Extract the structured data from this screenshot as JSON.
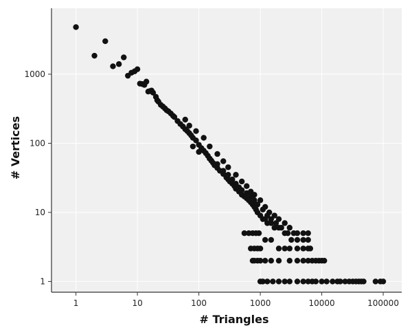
{
  "chart_data": {
    "type": "scatter",
    "title": "",
    "xlabel": "# Triangles",
    "ylabel": "# Vertices",
    "xscale": "log",
    "yscale": "log",
    "xlim": [
      0.4,
      200000
    ],
    "ylim": [
      0.7,
      9000
    ],
    "grid": true,
    "x_ticks": [
      1,
      10,
      100,
      1000,
      10000,
      100000
    ],
    "x_tick_labels": [
      "1",
      "10",
      "100",
      "1000",
      "10000",
      "100000"
    ],
    "y_ticks": [
      1,
      10,
      100,
      1000
    ],
    "y_tick_labels": [
      "1",
      "10",
      "100",
      "1000"
    ],
    "point_color": "#111111",
    "panel_color": "#f0f0f0",
    "grid_color": "#ffffff",
    "points": [
      [
        1,
        4800
      ],
      [
        2,
        1850
      ],
      [
        3,
        3000
      ],
      [
        4,
        1300
      ],
      [
        5,
        1400
      ],
      [
        6,
        1750
      ],
      [
        7,
        950
      ],
      [
        8,
        1050
      ],
      [
        9,
        1100
      ],
      [
        10,
        1180
      ],
      [
        11,
        730
      ],
      [
        12,
        720
      ],
      [
        13,
        700
      ],
      [
        14,
        780
      ],
      [
        15,
        560
      ],
      [
        16,
        570
      ],
      [
        17,
        580
      ],
      [
        18,
        540
      ],
      [
        20,
        470
      ],
      [
        21,
        420
      ],
      [
        22,
        400
      ],
      [
        24,
        360
      ],
      [
        26,
        340
      ],
      [
        28,
        320
      ],
      [
        30,
        300
      ],
      [
        32,
        290
      ],
      [
        35,
        270
      ],
      [
        38,
        250
      ],
      [
        40,
        240
      ],
      [
        45,
        210
      ],
      [
        50,
        190
      ],
      [
        55,
        175
      ],
      [
        60,
        160
      ],
      [
        65,
        150
      ],
      [
        70,
        140
      ],
      [
        75,
        130
      ],
      [
        80,
        120
      ],
      [
        90,
        110
      ],
      [
        100,
        95
      ],
      [
        110,
        85
      ],
      [
        120,
        78
      ],
      [
        130,
        72
      ],
      [
        140,
        66
      ],
      [
        150,
        60
      ],
      [
        160,
        56
      ],
      [
        170,
        52
      ],
      [
        180,
        48
      ],
      [
        200,
        44
      ],
      [
        220,
        40
      ],
      [
        250,
        36
      ],
      [
        280,
        32
      ],
      [
        300,
        30
      ],
      [
        320,
        28
      ],
      [
        350,
        26
      ],
      [
        380,
        24
      ],
      [
        400,
        22
      ],
      [
        450,
        20
      ],
      [
        500,
        18
      ],
      [
        550,
        17
      ],
      [
        600,
        16
      ],
      [
        650,
        15
      ],
      [
        700,
        14
      ],
      [
        750,
        13
      ],
      [
        800,
        12
      ],
      [
        850,
        11
      ],
      [
        900,
        10
      ],
      [
        1000,
        9
      ],
      [
        1100,
        8
      ],
      [
        1200,
        8
      ],
      [
        1300,
        7
      ],
      [
        1500,
        7
      ],
      [
        1700,
        6
      ],
      [
        2000,
        6
      ],
      [
        2500,
        5
      ],
      [
        60,
        220
      ],
      [
        70,
        180
      ],
      [
        90,
        150
      ],
      [
        120,
        120
      ],
      [
        150,
        90
      ],
      [
        200,
        70
      ],
      [
        250,
        55
      ],
      [
        300,
        45
      ],
      [
        400,
        35
      ],
      [
        500,
        28
      ],
      [
        600,
        24
      ],
      [
        700,
        20
      ],
      [
        800,
        18
      ],
      [
        1000,
        15
      ],
      [
        1200,
        12
      ],
      [
        1400,
        10
      ],
      [
        1700,
        9
      ],
      [
        2000,
        8
      ],
      [
        2500,
        7
      ],
      [
        3000,
        6
      ],
      [
        3500,
        5
      ],
      [
        4000,
        5
      ],
      [
        5000,
        5
      ],
      [
        6000,
        5
      ],
      [
        80,
        90
      ],
      [
        100,
        75
      ],
      [
        150,
        60
      ],
      [
        200,
        50
      ],
      [
        250,
        40
      ],
      [
        300,
        35
      ],
      [
        350,
        30
      ],
      [
        400,
        26
      ],
      [
        450,
        23
      ],
      [
        500,
        21
      ],
      [
        600,
        19
      ],
      [
        700,
        17
      ],
      [
        800,
        15
      ],
      [
        900,
        13
      ],
      [
        1100,
        11
      ],
      [
        1300,
        9
      ],
      [
        1500,
        8
      ],
      [
        1800,
        7
      ],
      [
        2200,
        6
      ],
      [
        2800,
        5
      ],
      [
        3200,
        4
      ],
      [
        4000,
        4
      ],
      [
        5000,
        4
      ],
      [
        6000,
        4
      ],
      [
        550,
        5
      ],
      [
        650,
        5
      ],
      [
        750,
        5
      ],
      [
        850,
        5
      ],
      [
        950,
        5
      ],
      [
        1200,
        4
      ],
      [
        1500,
        4
      ],
      [
        2000,
        3
      ],
      [
        2500,
        3
      ],
      [
        3000,
        3
      ],
      [
        4000,
        3
      ],
      [
        5000,
        3
      ],
      [
        6000,
        3
      ],
      [
        6500,
        3
      ],
      [
        700,
        3
      ],
      [
        800,
        3
      ],
      [
        900,
        3
      ],
      [
        1000,
        3
      ],
      [
        750,
        2
      ],
      [
        800,
        2
      ],
      [
        900,
        2
      ],
      [
        1000,
        2
      ],
      [
        1200,
        2
      ],
      [
        1500,
        2
      ],
      [
        2000,
        2
      ],
      [
        3000,
        2
      ],
      [
        4000,
        2
      ],
      [
        5000,
        2
      ],
      [
        6000,
        2
      ],
      [
        7000,
        2
      ],
      [
        8000,
        2
      ],
      [
        9000,
        2
      ],
      [
        10000,
        2
      ],
      [
        11000,
        2
      ],
      [
        1000,
        1
      ],
      [
        1100,
        1
      ],
      [
        1300,
        1
      ],
      [
        1600,
        1
      ],
      [
        2000,
        1
      ],
      [
        2500,
        1
      ],
      [
        3000,
        1
      ],
      [
        4000,
        1
      ],
      [
        5000,
        1
      ],
      [
        6000,
        1
      ],
      [
        7000,
        1
      ],
      [
        8000,
        1
      ],
      [
        10000,
        1
      ],
      [
        12000,
        1
      ],
      [
        15000,
        1
      ],
      [
        18000,
        1
      ],
      [
        20000,
        1
      ],
      [
        24000,
        1
      ],
      [
        28000,
        1
      ],
      [
        32000,
        1
      ],
      [
        36000,
        1
      ],
      [
        40000,
        1
      ],
      [
        44000,
        1
      ],
      [
        48000,
        1
      ],
      [
        75000,
        1
      ],
      [
        90000,
        1
      ],
      [
        100000,
        1
      ]
    ]
  }
}
